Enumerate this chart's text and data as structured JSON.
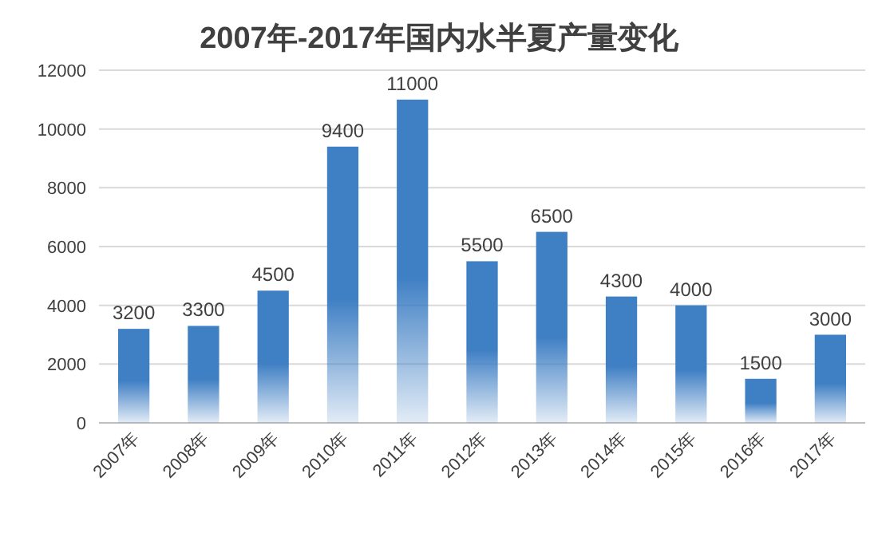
{
  "chart_data": {
    "type": "bar",
    "title": "2007年-2017年国内水半夏产量变化",
    "categories": [
      "2007年",
      "2008年",
      "2009年",
      "2010年",
      "2011年",
      "2012年",
      "2013年",
      "2014年",
      "2015年",
      "2016年",
      "2017年"
    ],
    "values": [
      3200,
      3300,
      4500,
      9400,
      11000,
      5500,
      6500,
      4300,
      4000,
      1500,
      3000
    ],
    "color": "#3f7fc4",
    "ylim": [
      0,
      12000
    ],
    "yticks": [
      0,
      2000,
      4000,
      6000,
      8000,
      10000,
      12000
    ],
    "grid": "y",
    "data_labels": true
  }
}
